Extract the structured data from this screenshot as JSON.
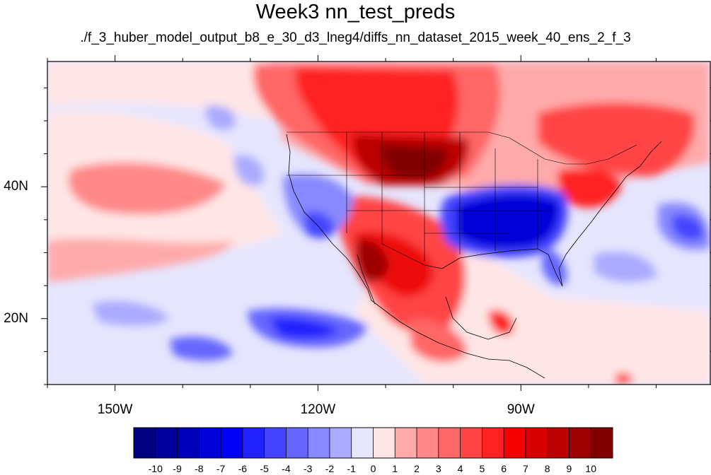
{
  "title": "Week3 nn_test_preds",
  "subtitle": "./f_3_huber_model_output_b8_e_30_d3_lneg4/diffs_nn_dataset_2015_week_40_ens_2_f_3",
  "map": {
    "projection": "cylindrical equidistant",
    "lon_range": [
      -160,
      -62
    ],
    "lat_range": [
      10,
      59
    ],
    "lon_ticks": [
      {
        "value": -150,
        "label": "150W"
      },
      {
        "value": -120,
        "label": "120W"
      },
      {
        "value": -90,
        "label": "90W"
      }
    ],
    "lat_ticks": [
      {
        "value": 40,
        "label": "40N"
      },
      {
        "value": 20,
        "label": "20N"
      }
    ],
    "field_description": "Filled contour anomaly field over North America and adjacent Pacific; warm (red) anomalies over northern Great Plains, southwest US and Mexico, cold (blue) anomalies over southeastern US and eastern Pacific near 18N"
  },
  "colorbar": {
    "labels": [
      "-10",
      "-9",
      "-8",
      "-7",
      "-6",
      "-5",
      "-4",
      "-3",
      "-2",
      "-1",
      "0",
      "1",
      "2",
      "3",
      "4",
      "5",
      "6",
      "7",
      "8",
      "9",
      "10"
    ],
    "colors": [
      "#000080",
      "#00009e",
      "#0000bb",
      "#0000d8",
      "#0000f5",
      "#2222ff",
      "#4444ff",
      "#6666ff",
      "#8888ff",
      "#aaaaff",
      "#e6e6ff",
      "#ffe6e6",
      "#ffaaaa",
      "#ff8888",
      "#ff6666",
      "#ff4444",
      "#ff2222",
      "#f50000",
      "#d80000",
      "#bb0000",
      "#9e0000",
      "#800000"
    ]
  }
}
